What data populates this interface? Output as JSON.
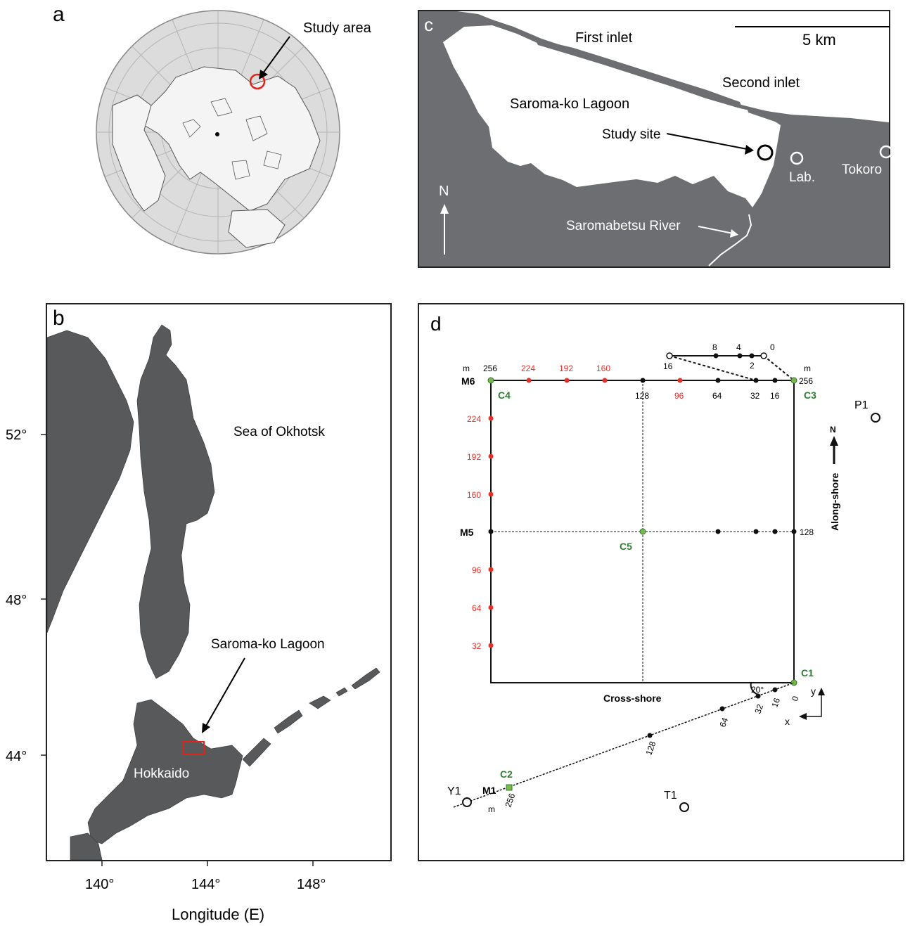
{
  "panel_a": {
    "letter": "a",
    "study_area_label": "Study area"
  },
  "panel_b": {
    "letter": "b",
    "sea_label": "Sea of Okhotsk",
    "lagoon_label": "Saroma-ko Lagoon",
    "island_label": "Hokkaido",
    "x_axis_title": "Longitude (E)",
    "x_ticks": [
      "140°",
      "144°",
      "148°"
    ],
    "y_ticks": [
      "52°",
      "48°",
      "44°"
    ]
  },
  "panel_c": {
    "letter": "c",
    "scale_label": "5 km",
    "first_inlet": "First inlet",
    "second_inlet": "Second inlet",
    "lagoon_name": "Saroma-ko Lagoon",
    "study_site": "Study site",
    "lab": "Lab.",
    "tokoro": "Tokoro",
    "north": "N",
    "river": "Saromabetsu River"
  },
  "panel_d": {
    "letter": "d",
    "north": "N",
    "along_shore": "Along-shore",
    "cross_shore": "Cross-shore",
    "angle": "20°",
    "axis_x": "x",
    "axis_y": "y",
    "unit": "m",
    "points": {
      "C1": "C1",
      "C2": "C2",
      "C3": "C3",
      "C4": "C4",
      "C5": "C5",
      "M1": "M1",
      "M5": "M5",
      "M6": "M6",
      "P1": "P1",
      "T1": "T1",
      "Y1": "Y1"
    },
    "top_labels_black": [
      "256",
      "128",
      "64",
      "32",
      "16",
      "256"
    ],
    "top_labels_red": [
      "224",
      "192",
      "160",
      "96"
    ],
    "left_labels_red": [
      "224",
      "192",
      "160",
      "96",
      "64",
      "32"
    ],
    "right_label": "128",
    "branch_labels": [
      "16",
      "8",
      "4",
      "2",
      "0"
    ],
    "diag_labels": [
      "0",
      "16",
      "32",
      "64",
      "128",
      "256"
    ],
    "colors": {
      "red_node": "#e8302a",
      "green_node": "#7ab648",
      "green_text": "#2e7d32",
      "land": "#6d6e71"
    }
  }
}
